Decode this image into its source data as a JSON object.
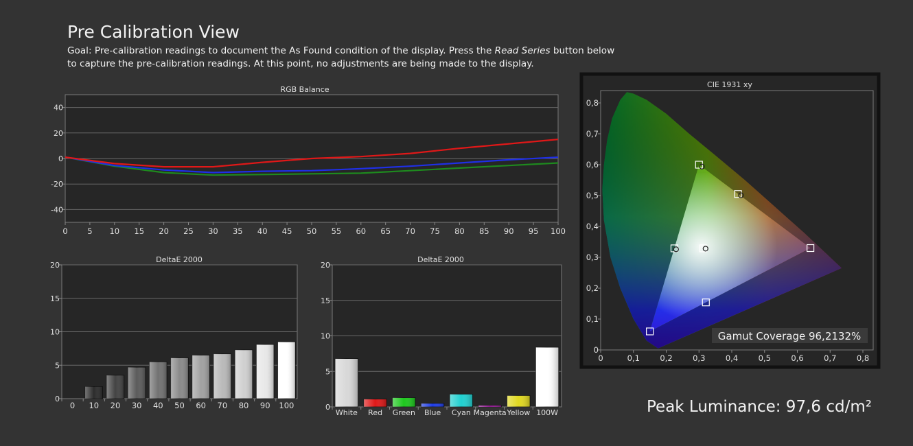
{
  "page": {
    "title": "Pre Calibration View",
    "goal_prefix": "Goal: Pre-calibration readings to document the As Found condition of the display. Press the ",
    "goal_emphasis": "Read Series",
    "goal_suffix": " button below to capture the pre-calibration readings. At this point, no adjustments are being made to the display.",
    "peak_luminance": "Peak Luminance: 97,6 cd/m²"
  },
  "chart_data": [
    {
      "id": "rgb-balance",
      "type": "line",
      "title": "RGB Balance",
      "x": [
        0,
        10,
        20,
        30,
        40,
        50,
        60,
        70,
        80,
        90,
        100
      ],
      "xticks": [
        "0",
        "5",
        "10",
        "15",
        "20",
        "25",
        "30",
        "35",
        "40",
        "45",
        "50",
        "55",
        "60",
        "65",
        "70",
        "75",
        "80",
        "85",
        "90",
        "95",
        "100"
      ],
      "xlim": [
        0,
        100
      ],
      "ylim": [
        -50,
        50
      ],
      "yticks": [
        "40",
        "20",
        "0",
        "-20",
        "-40"
      ],
      "grid": true,
      "series": [
        {
          "color": "#e01818",
          "values": [
            1,
            -4,
            -6.5,
            -6.5,
            -3,
            0,
            1.5,
            4,
            8,
            11.5,
            15
          ]
        },
        {
          "color": "#1f2fe6",
          "values": [
            1,
            -5.5,
            -9,
            -11,
            -10,
            -9.5,
            -8,
            -6,
            -3.5,
            -1,
            1
          ]
        },
        {
          "color": "#1e8a1e",
          "values": [
            1,
            -6,
            -11,
            -13,
            -12.5,
            -12,
            -11.5,
            -9.5,
            -7.5,
            -5.5,
            -3.5
          ]
        }
      ]
    },
    {
      "id": "deltae-grayscale",
      "type": "bar",
      "title": "DeltaE 2000",
      "categories": [
        "0",
        "10",
        "20",
        "30",
        "40",
        "50",
        "60",
        "70",
        "80",
        "90",
        "100"
      ],
      "values": [
        0,
        1.8,
        3.5,
        4.7,
        5.5,
        6.1,
        6.5,
        6.7,
        7.3,
        8.1,
        8.5
      ],
      "ylim": [
        0,
        20
      ],
      "yticks": [
        "20",
        "15",
        "10",
        "5",
        "0"
      ],
      "grid": true
    },
    {
      "id": "deltae-colors",
      "type": "bar",
      "title": "DeltaE 2000",
      "categories": [
        "White",
        "Red",
        "Green",
        "Blue",
        "Cyan",
        "Magenta",
        "Yellow",
        "100W"
      ],
      "values": [
        6.8,
        1.1,
        1.3,
        0.5,
        1.8,
        0.2,
        1.6,
        8.4
      ],
      "colors": [
        "#d8d8d8",
        "#e01818",
        "#1ec81e",
        "#1e3ce6",
        "#20d0d0",
        "#e020e0",
        "#e0d820",
        "#ffffff"
      ],
      "ylim": [
        0,
        20
      ],
      "yticks": [
        "20",
        "15",
        "10",
        "5",
        "0"
      ],
      "grid": true
    },
    {
      "id": "cie-1931",
      "type": "scatter",
      "title": "CIE 1931 xy",
      "xlim": [
        0,
        0.8
      ],
      "ylim": [
        0,
        0.85
      ],
      "xticks": [
        "0",
        "0,1",
        "0,2",
        "0,3",
        "0,4",
        "0,5",
        "0,6",
        "0,7",
        "0,8"
      ],
      "yticks": [
        "0,8",
        "0,7",
        "0,6",
        "0,5",
        "0,4",
        "0,3",
        "0,2",
        "0,1",
        "0"
      ],
      "targets": [
        {
          "x": 0.64,
          "y": 0.33
        },
        {
          "x": 0.3,
          "y": 0.6
        },
        {
          "x": 0.15,
          "y": 0.06
        },
        {
          "x": 0.419,
          "y": 0.505
        },
        {
          "x": 0.225,
          "y": 0.329
        },
        {
          "x": 0.321,
          "y": 0.154
        },
        {
          "x": 0.3127,
          "y": 0.329
        }
      ],
      "measured": [
        {
          "x": 0.309,
          "y": 0.594
        },
        {
          "x": 0.428,
          "y": 0.501
        },
        {
          "x": 0.23,
          "y": 0.326
        },
        {
          "x": 0.32,
          "y": 0.328
        }
      ],
      "annotation": "Gamut Coverage 96,2132%"
    }
  ]
}
